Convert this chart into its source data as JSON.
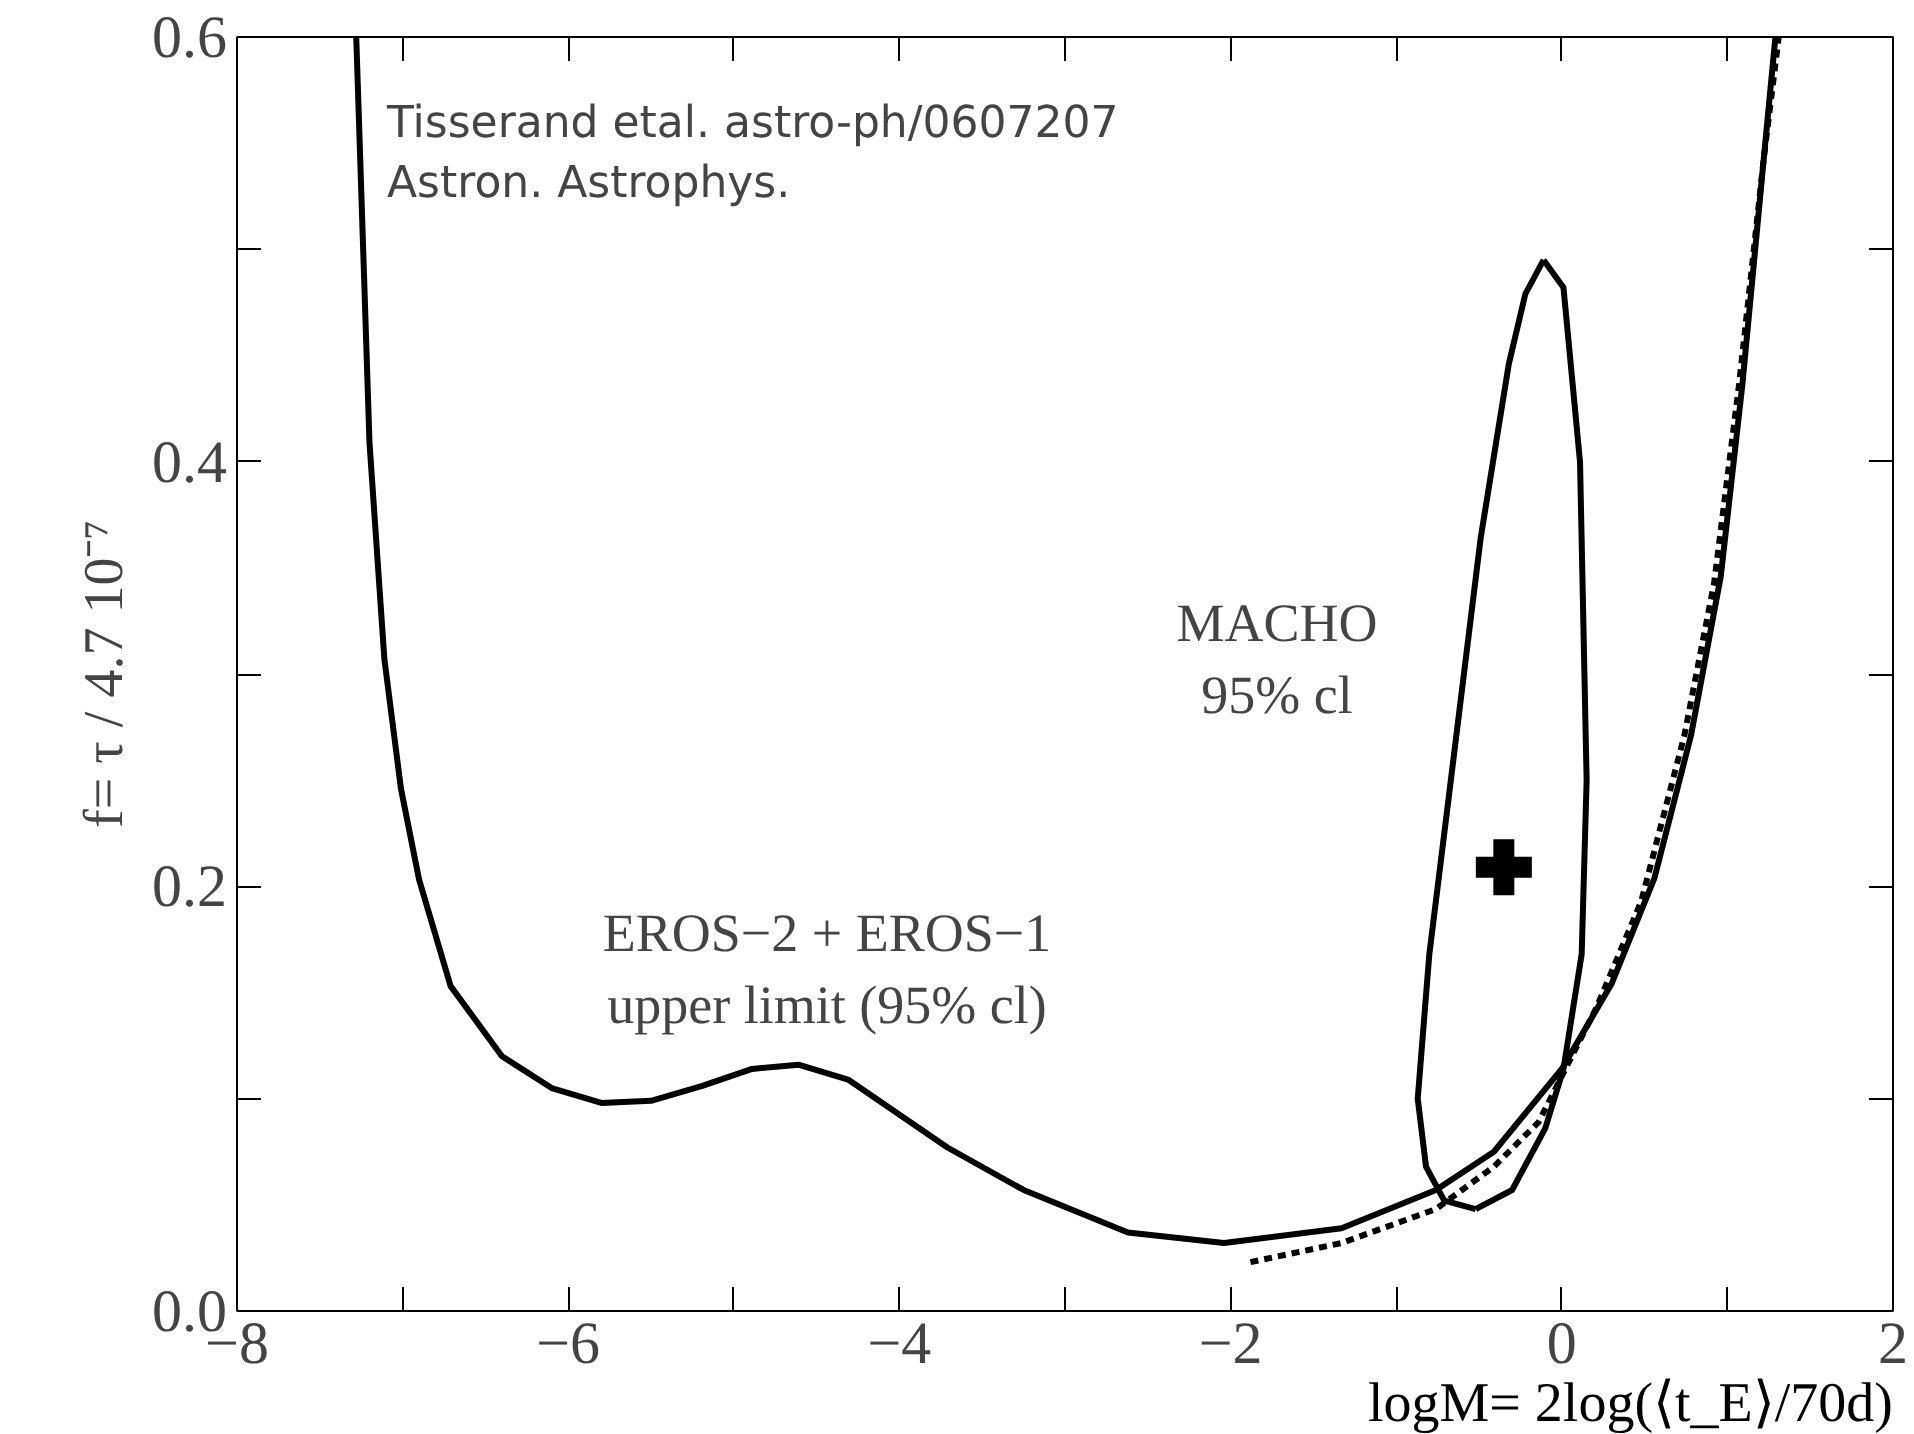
{
  "chart_data": {
    "type": "line",
    "xlabel": "logM= 2log(⟨t_E⟩/70d)",
    "ylabel": "f= τ / 4.7 10⁻⁷",
    "xlim": [
      -8,
      2
    ],
    "ylim": [
      0,
      0.6
    ],
    "xticks": [
      {
        "value": -8,
        "label": "−8"
      },
      {
        "value": -7,
        "label": null
      },
      {
        "value": -6,
        "label": "−6"
      },
      {
        "value": -5,
        "label": null
      },
      {
        "value": -4,
        "label": "−4"
      },
      {
        "value": -3,
        "label": null
      },
      {
        "value": -2,
        "label": "−2"
      },
      {
        "value": -1,
        "label": null
      },
      0,
      {
        "value": 1,
        "label": null
      },
      2
    ],
    "yticks": [
      {
        "value": 0,
        "label": "0.0"
      },
      {
        "value": 0.1,
        "label": null
      },
      0.2,
      {
        "value": 0.3,
        "label": null
      },
      0.4,
      {
        "value": 0.5,
        "label": null
      },
      0.6
    ],
    "grid": false,
    "series": [
      {
        "color": "#000000",
        "line_style": "solid",
        "x": [
          -7.28,
          -7.2,
          -7.11,
          -7.01,
          -6.9,
          -6.71,
          -6.4,
          -6.1,
          -5.8,
          -5.5,
          -5.19,
          -4.89,
          -4.61,
          -4.31,
          -3.71,
          -3.25,
          -2.62,
          -2.04,
          -1.33,
          -0.76,
          -0.41,
          0.0,
          0.3,
          0.56,
          0.78,
          0.96,
          1.09,
          1.22,
          1.29
        ],
        "values": [
          0.6,
          0.409,
          0.307,
          0.246,
          0.203,
          0.153,
          0.12,
          0.105,
          0.098,
          0.099,
          0.106,
          0.114,
          0.116,
          0.109,
          0.077,
          0.057,
          0.037,
          0.032,
          0.039,
          0.057,
          0.075,
          0.114,
          0.154,
          0.204,
          0.271,
          0.346,
          0.436,
          0.543,
          0.6
        ]
      },
      {
        "color": "#000000",
        "line_style": "dashed",
        "x": [
          -1.88,
          -1.33,
          -0.76,
          -0.41,
          -0.14,
          0.21,
          0.48,
          0.74,
          0.92,
          1.07,
          1.22,
          1.31
        ],
        "values": [
          0.023,
          0.032,
          0.048,
          0.068,
          0.089,
          0.143,
          0.193,
          0.271,
          0.343,
          0.436,
          0.543,
          0.6
        ]
      },
      {
        "color": "#000000",
        "line_style": "solid",
        "x": [
          -0.11,
          0.01,
          0.11,
          0.15,
          0.12,
          0.01,
          -0.1,
          -0.3,
          -0.52
        ],
        "values": [
          0.495,
          0.482,
          0.4,
          0.25,
          0.168,
          0.114,
          0.086,
          0.057,
          0.048
        ]
      },
      {
        "color": "#000000",
        "line_style": "solid",
        "x": [
          -0.52,
          -0.71,
          -0.82,
          -0.87,
          -0.8,
          -0.67,
          -0.49,
          -0.32,
          -0.22,
          -0.11
        ],
        "values": [
          0.048,
          0.052,
          0.068,
          0.1,
          0.168,
          0.25,
          0.364,
          0.446,
          0.479,
          0.495
        ]
      },
      {
        "type": "scatter",
        "color": "#000000",
        "marker": "cross",
        "x": [
          -0.35
        ],
        "values": [
          0.209
        ]
      }
    ],
    "annotations": [
      "Tisserand etal. astro-ph/0607207\nAstron. Astrophys.",
      "EROS−2 + EROS−1\nupper limit (95% cl)",
      "MACHO\n95% cl"
    ]
  }
}
